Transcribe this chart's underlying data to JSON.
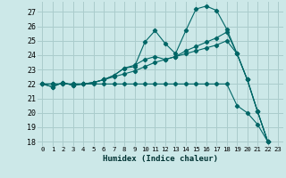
{
  "xlabel": "Humidex (Indice chaleur)",
  "background_color": "#cce8e8",
  "grid_color": "#aacccc",
  "line_color": "#006666",
  "xlim": [
    -0.5,
    23.5
  ],
  "ylim": [
    17.7,
    27.7
  ],
  "yticks": [
    18,
    19,
    20,
    21,
    22,
    23,
    24,
    25,
    26,
    27
  ],
  "xticks": [
    0,
    1,
    2,
    3,
    4,
    5,
    6,
    7,
    8,
    9,
    10,
    11,
    12,
    13,
    14,
    15,
    16,
    17,
    18,
    19,
    20,
    21,
    22,
    23
  ],
  "series": [
    [
      22.0,
      21.8,
      22.1,
      21.9,
      22.0,
      22.1,
      22.3,
      22.6,
      23.1,
      23.2,
      24.9,
      25.7,
      24.8,
      24.1,
      25.7,
      27.2,
      27.4,
      27.1,
      25.8,
      24.1,
      22.3,
      20.1,
      18.0
    ],
    [
      22.0,
      21.8,
      22.1,
      21.9,
      22.0,
      22.1,
      22.3,
      22.6,
      23.1,
      23.3,
      23.7,
      23.9,
      23.7,
      23.9,
      24.3,
      24.6,
      24.9,
      25.2,
      25.6,
      24.1,
      22.3,
      20.1,
      18.0
    ],
    [
      22.0,
      22.0,
      22.0,
      22.0,
      22.0,
      22.1,
      22.3,
      22.5,
      22.7,
      22.9,
      23.2,
      23.5,
      23.7,
      23.9,
      24.1,
      24.3,
      24.5,
      24.7,
      25.0,
      24.1,
      22.3,
      20.1,
      18.0
    ],
    [
      22.0,
      22.0,
      22.0,
      22.0,
      22.0,
      22.0,
      22.0,
      22.0,
      22.0,
      22.0,
      22.0,
      22.0,
      22.0,
      22.0,
      22.0,
      22.0,
      22.0,
      22.0,
      22.0,
      20.5,
      20.0,
      19.2,
      18.0
    ]
  ]
}
